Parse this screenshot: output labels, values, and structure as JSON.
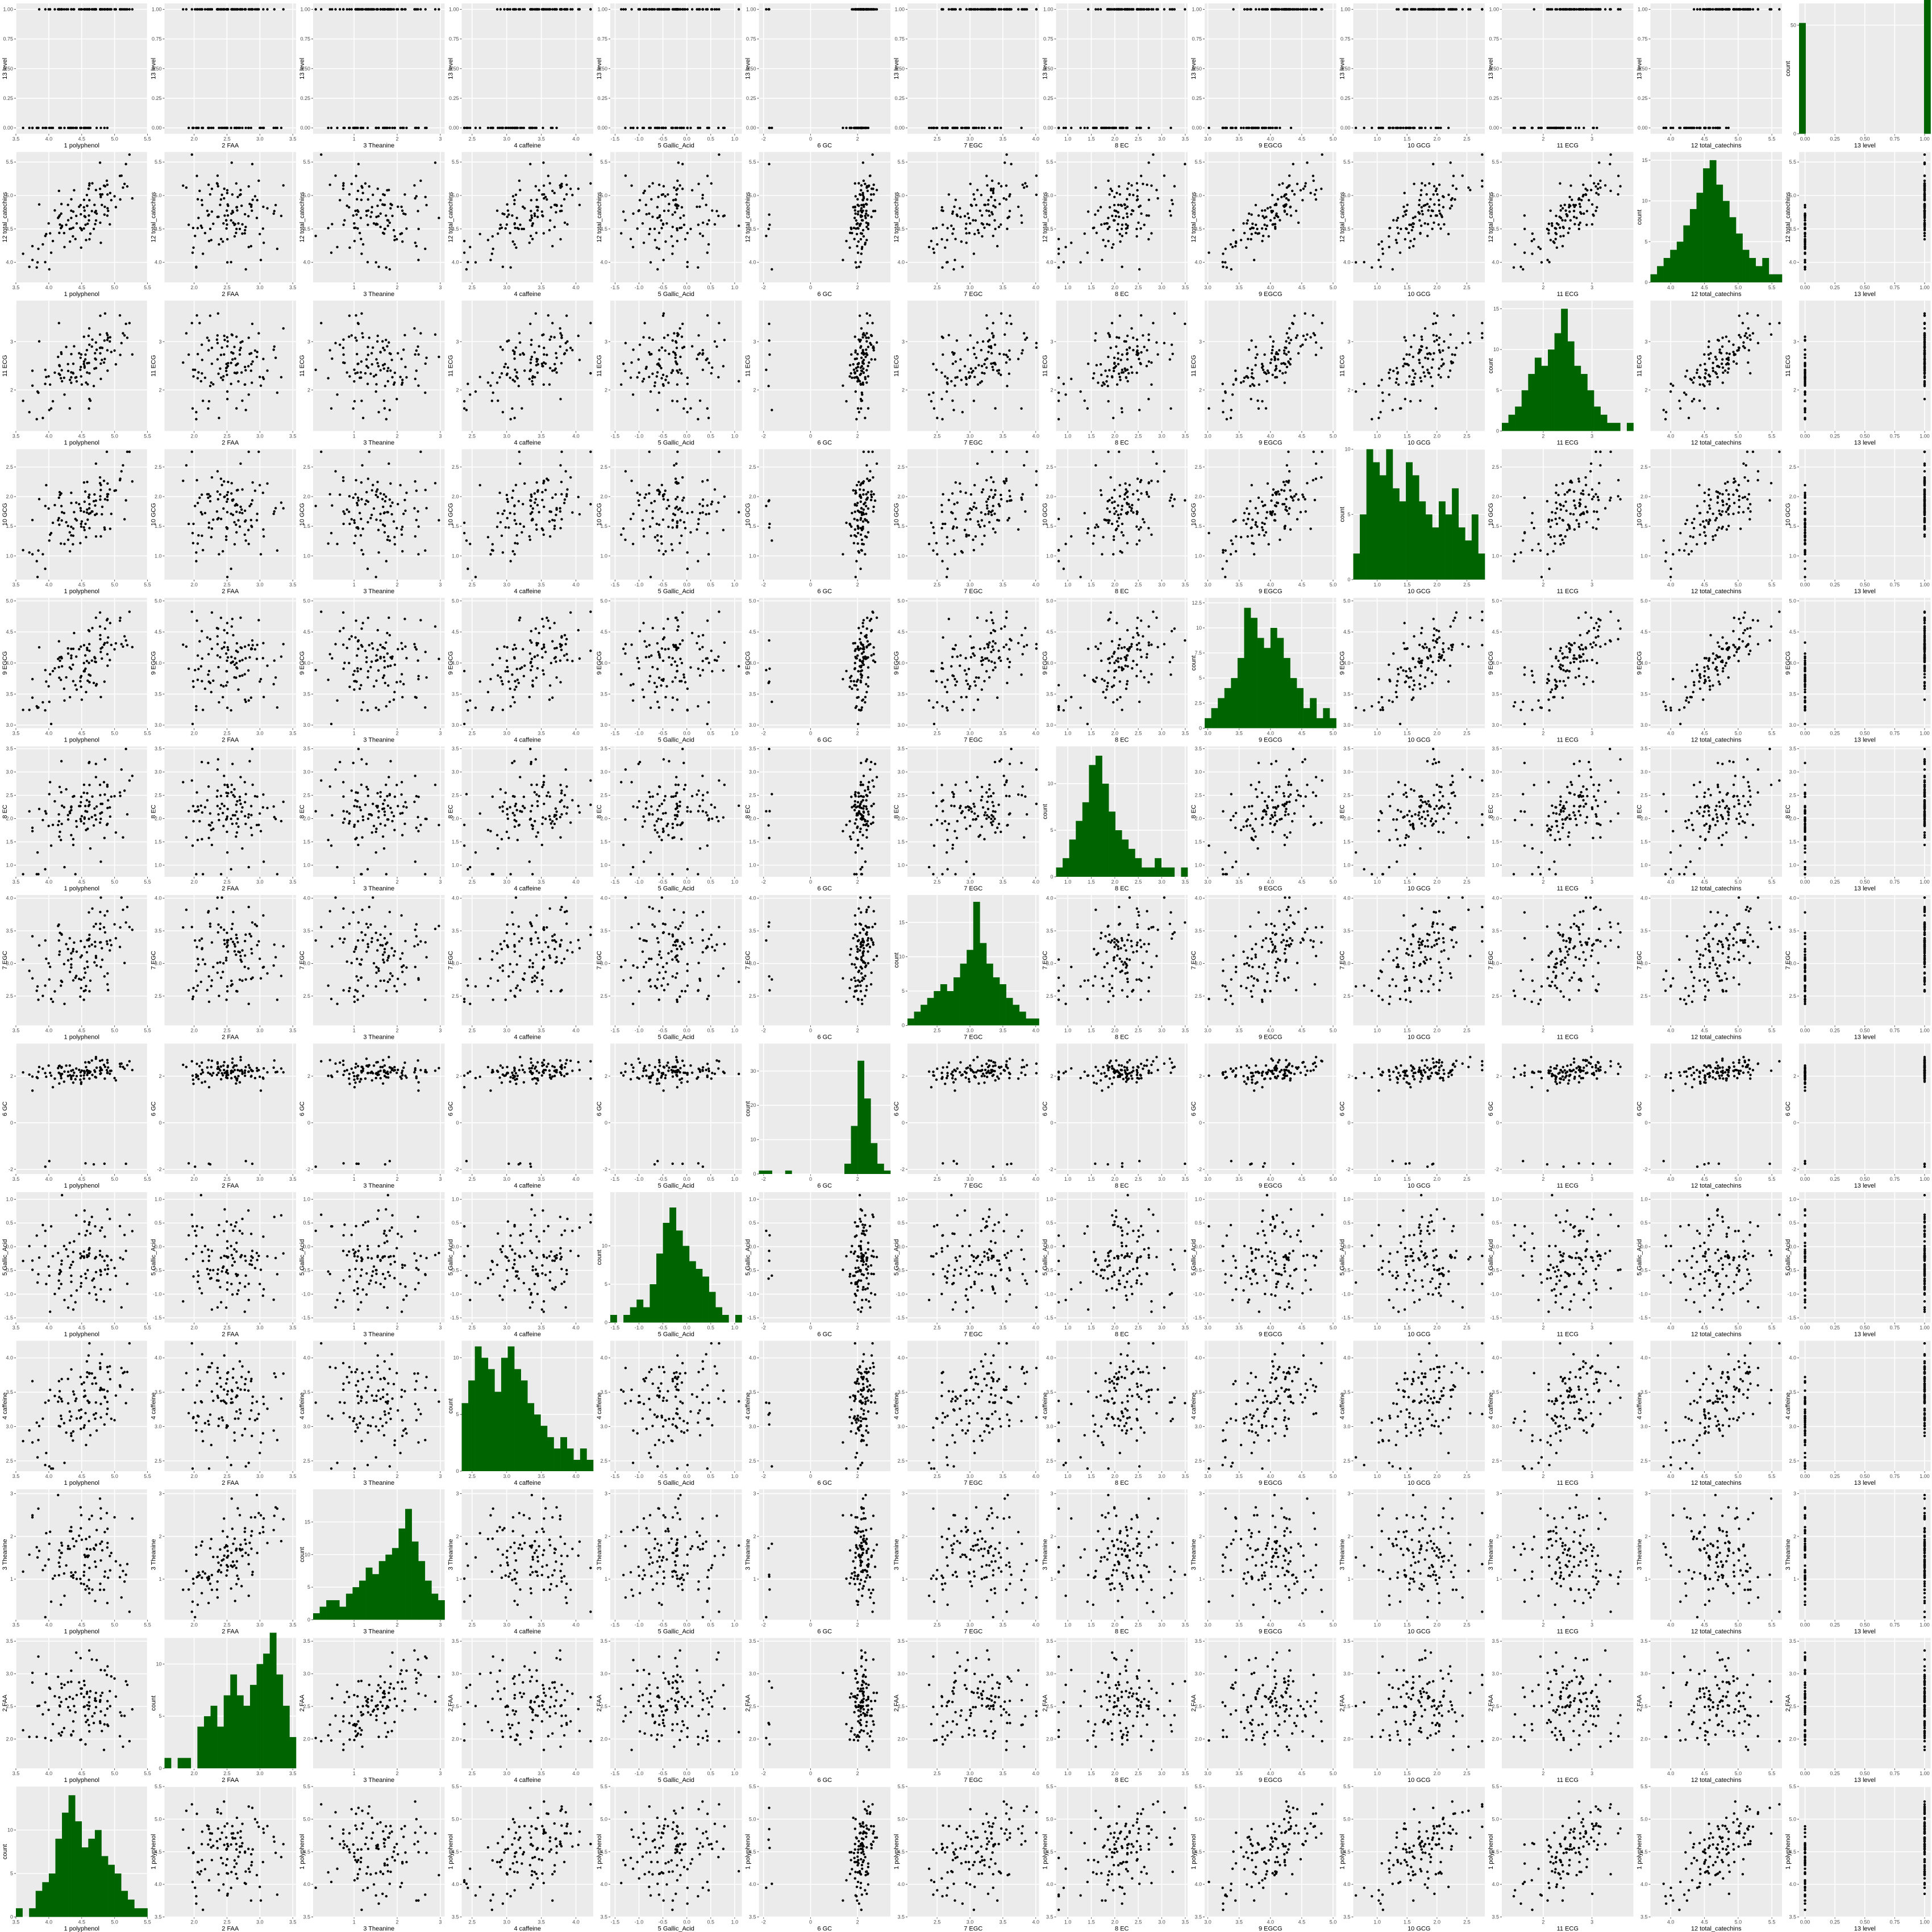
{
  "chart_data": {
    "type": "scatter-matrix",
    "variables": [
      {
        "label": "1 polyphenol",
        "ticks": [
          3.5,
          4.0,
          4.5,
          5.0,
          5.5
        ],
        "tick_labels": [
          "3.5",
          "4.0",
          "4.5",
          "5.0",
          "5.5"
        ],
        "range": [
          3.5,
          5.5
        ]
      },
      {
        "label": "2 FAA",
        "ticks": [
          2.0,
          2.5,
          3.0,
          3.5
        ],
        "tick_labels": [
          "2.0",
          "2.5",
          "3.0",
          "3.5"
        ],
        "range": [
          1.55,
          3.55
        ]
      },
      {
        "label": "3 Theanine",
        "ticks": [
          1,
          2,
          3
        ],
        "tick_labels": [
          "1",
          "2",
          "3"
        ],
        "range": [
          0.05,
          3.1
        ]
      },
      {
        "label": "4 caffeine",
        "ticks": [
          2.5,
          3.0,
          3.5,
          4.0
        ],
        "tick_labels": [
          "2.5",
          "3.0",
          "3.5",
          "4.0"
        ],
        "range": [
          2.35,
          4.25
        ]
      },
      {
        "label": "5 Gallic_Acid",
        "ticks": [
          -1.5,
          -1.0,
          -0.5,
          0.0,
          0.5,
          1.0
        ],
        "tick_labels": [
          "-1.5",
          "-1.0",
          "-0.5",
          "0.0",
          "0.5",
          "1.0"
        ],
        "range": [
          -1.6,
          1.15
        ]
      },
      {
        "label": "6 GC",
        "ticks": [
          -2,
          0,
          2
        ],
        "tick_labels": [
          "-2",
          "0",
          "2"
        ],
        "range": [
          -2.2,
          3.4
        ]
      },
      {
        "label": "7 EGC",
        "ticks": [
          2.5,
          3.0,
          3.5,
          4.0
        ],
        "tick_labels": [
          "2.5",
          "3.0",
          "3.5",
          "4.0"
        ],
        "range": [
          2.05,
          4.05
        ]
      },
      {
        "label": "8 EC",
        "ticks": [
          1.0,
          1.5,
          2.0,
          2.5,
          3.0,
          3.5
        ],
        "tick_labels": [
          "1.0",
          "1.5",
          "2.0",
          "2.5",
          "3.0",
          "3.5"
        ],
        "range": [
          0.75,
          3.55
        ]
      },
      {
        "label": "9 EGCG",
        "ticks": [
          3.0,
          3.5,
          4.0,
          4.5,
          5.0
        ],
        "tick_labels": [
          "3.0",
          "3.5",
          "4.0",
          "4.5",
          "5.0"
        ],
        "range": [
          2.95,
          5.05
        ]
      },
      {
        "label": "10 GCG",
        "ticks": [
          1.0,
          1.5,
          2.0,
          2.5
        ],
        "tick_labels": [
          "1.0",
          "1.5",
          "2.0",
          "2.5"
        ],
        "range": [
          0.6,
          2.8
        ]
      },
      {
        "label": "11 ECG",
        "ticks": [
          2,
          3
        ],
        "tick_labels": [
          "2",
          "3"
        ],
        "range": [
          1.15,
          3.85
        ]
      },
      {
        "label": "12 total_catechins",
        "ticks": [
          4.0,
          4.5,
          5.0,
          5.5
        ],
        "tick_labels": [
          "4.0",
          "4.5",
          "5.0",
          "5.5"
        ],
        "range": [
          3.7,
          5.65
        ]
      },
      {
        "label": "13 level",
        "ticks": [
          0.0,
          0.25,
          0.5,
          0.75,
          1.0
        ],
        "tick_labels": [
          "0.00",
          "0.25",
          "0.50",
          "0.75",
          "1.00"
        ],
        "range": [
          -0.05,
          1.05
        ]
      }
    ],
    "diagonal": {
      "type": "histogram",
      "ylabel": "count",
      "count_ticks": [
        [
          0,
          5,
          10
        ],
        [
          0,
          5,
          10
        ],
        [
          0,
          5,
          10,
          15
        ],
        [
          0,
          5,
          10
        ],
        [
          0,
          5,
          10
        ],
        [
          0,
          10,
          20,
          30
        ],
        [
          0,
          5,
          10,
          15
        ],
        [
          0,
          5,
          10
        ],
        [
          0,
          2.5,
          5.0,
          7.5,
          10.0,
          12.5
        ],
        [
          0,
          5,
          10
        ],
        [
          0,
          5,
          10,
          15
        ],
        [
          0,
          5,
          10,
          15
        ],
        [
          0,
          50
        ]
      ],
      "count_max": [
        15,
        12.5,
        20,
        11.5,
        17,
        38,
        19,
        14,
        13,
        10,
        16,
        16,
        60
      ],
      "counts": [
        [
          1,
          0,
          1,
          3,
          4,
          5,
          9,
          12,
          14,
          11,
          8,
          9,
          10,
          7,
          6,
          5,
          3,
          2,
          1,
          1
        ],
        [
          1,
          0,
          1,
          1,
          0,
          4,
          5,
          6,
          4,
          7,
          9,
          7,
          6,
          8,
          10,
          11,
          13,
          9,
          6,
          3
        ],
        [
          1,
          2,
          3,
          3,
          2,
          4,
          5,
          6,
          8,
          7,
          9,
          10,
          11,
          14,
          17,
          12,
          9,
          6,
          4,
          3
        ],
        [
          6,
          8,
          11,
          10,
          9,
          7,
          10,
          11,
          9,
          8,
          6,
          5,
          4,
          3,
          2,
          3,
          2,
          1,
          2,
          1
        ],
        [
          1,
          0,
          1,
          2,
          3,
          2,
          5,
          9,
          13,
          15,
          12,
          10,
          8,
          7,
          6,
          4,
          2,
          1,
          0,
          1
        ],
        [
          1,
          1,
          0,
          0,
          1,
          0,
          0,
          0,
          0,
          0,
          0,
          0,
          0,
          3,
          14,
          33,
          22,
          9,
          3,
          1
        ],
        [
          1,
          2,
          3,
          4,
          5,
          6,
          5,
          7,
          9,
          11,
          18,
          12,
          9,
          7,
          6,
          4,
          3,
          2,
          1,
          1
        ],
        [
          1,
          2,
          4,
          6,
          8,
          12,
          13,
          10,
          7,
          5,
          4,
          3,
          2,
          1,
          1,
          2,
          1,
          1,
          0,
          1
        ],
        [
          1,
          2,
          3,
          4,
          5,
          7,
          12,
          11,
          9,
          8,
          10,
          9,
          7,
          5,
          4,
          2,
          3,
          1,
          2,
          1
        ],
        [
          2,
          5,
          10,
          9,
          8,
          10,
          7,
          6,
          9,
          8,
          6,
          5,
          4,
          6,
          5,
          7,
          4,
          3,
          5,
          2
        ],
        [
          1,
          2,
          3,
          5,
          7,
          9,
          8,
          10,
          12,
          15,
          11,
          8,
          7,
          5,
          3,
          2,
          1,
          1,
          0,
          1
        ],
        [
          1,
          2,
          3,
          4,
          5,
          7,
          9,
          11,
          14,
          15,
          12,
          10,
          8,
          6,
          4,
          3,
          2,
          3,
          1,
          1
        ],
        [
          51,
          0,
          0,
          0,
          0,
          0,
          0,
          0,
          0,
          0,
          0,
          0,
          0,
          0,
          0,
          0,
          0,
          0,
          0,
          66
        ]
      ]
    },
    "off_diagonal": {
      "type": "scatter",
      "n_points": 117,
      "point_color": "#000000"
    },
    "bar_color": "#006400"
  }
}
